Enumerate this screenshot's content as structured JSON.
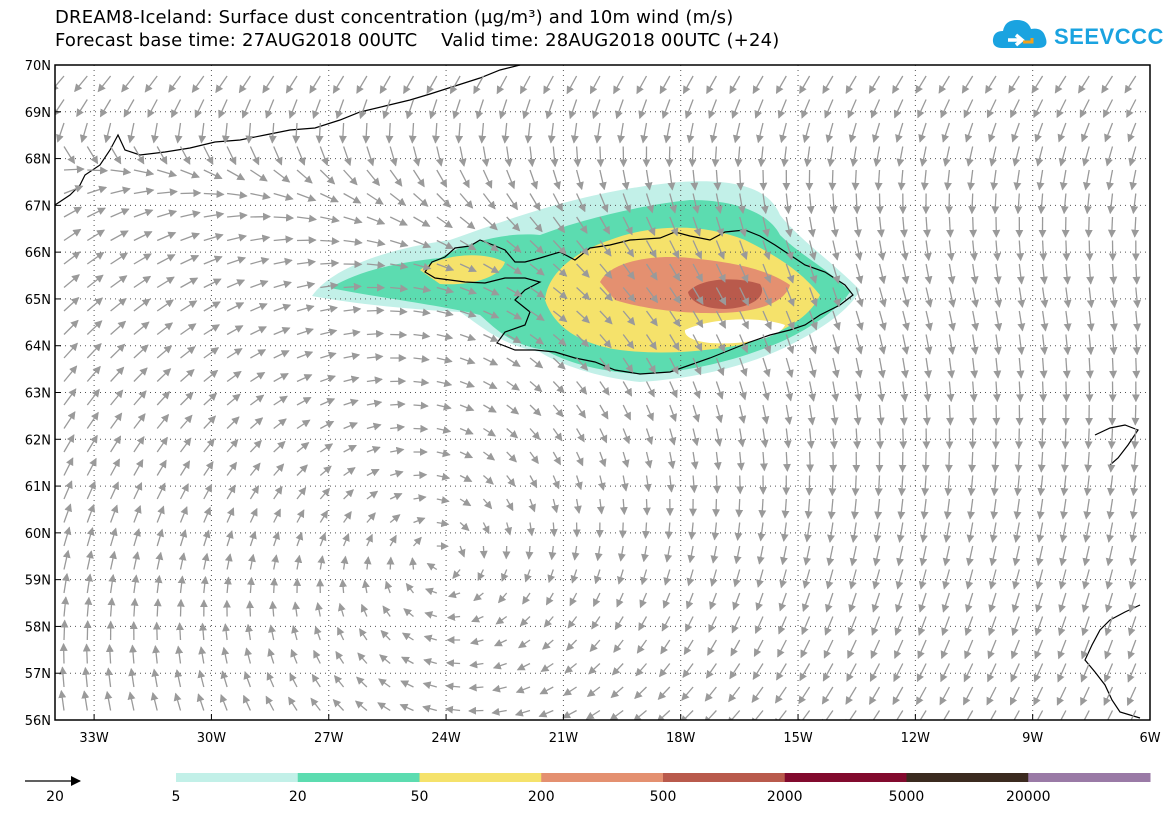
{
  "title": {
    "line1": "DREAM8-Iceland: Surface dust concentration (µg/m³) and 10m wind (m/s)",
    "line2": "Forecast base time: 27AUG2018 00UTC    Valid time: 28AUG2018 00UTC (+24)"
  },
  "logo": {
    "text": "SEEVCCC",
    "icon": "cloud-icon",
    "color": "#1aa3e0"
  },
  "map": {
    "lon_labels": [
      "33W",
      "30W",
      "27W",
      "24W",
      "21W",
      "18W",
      "15W",
      "12W",
      "9W",
      "6W"
    ],
    "lat_labels": [
      "70N",
      "69N",
      "68N",
      "67N",
      "66N",
      "65N",
      "64N",
      "63N",
      "62N",
      "61N",
      "60N",
      "59N",
      "58N",
      "57N",
      "56N"
    ],
    "lon_range": [
      -34,
      -6
    ],
    "lat_range": [
      56,
      70
    ],
    "gridlines": "dotted",
    "wind_arrow_color": "#9a9a9a",
    "coastline_color": "#000000",
    "dust_center": {
      "lon": -16.5,
      "lat": 65.1
    }
  },
  "legend": {
    "wind_reference_label": "20",
    "bins": [
      {
        "color": "#c2f0e8"
      },
      {
        "color": "#5cdcb0"
      },
      {
        "color": "#f5e26b"
      },
      {
        "color": "#e49070"
      },
      {
        "color": "#b95a4c"
      },
      {
        "color": "#820a2e"
      },
      {
        "color": "#3b2a1f"
      },
      {
        "color": "#9a7aa6"
      }
    ],
    "labels": [
      "5",
      "20",
      "50",
      "200",
      "500",
      "2000",
      "5000",
      "20000"
    ]
  }
}
